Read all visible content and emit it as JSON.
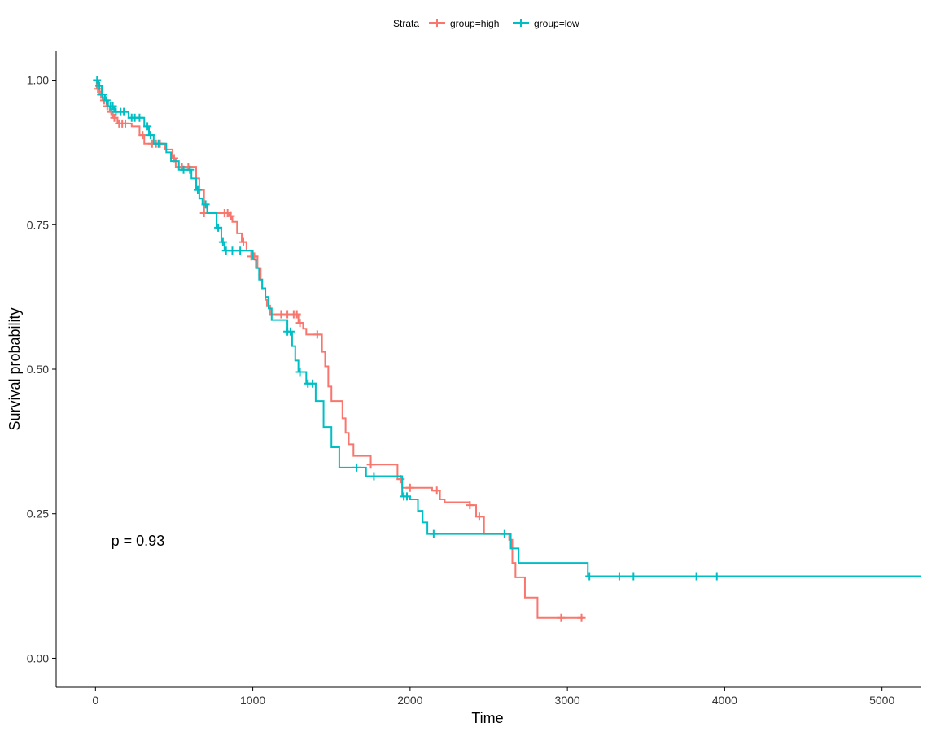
{
  "chart_data": {
    "type": "line",
    "subtype": "kaplan-meier",
    "title": "",
    "xlabel": "Time",
    "ylabel": "Survival probability",
    "xlim": [
      -250,
      5250
    ],
    "ylim": [
      -0.05,
      1.05
    ],
    "x_ticks": [
      0,
      1000,
      2000,
      3000,
      4000,
      5000
    ],
    "y_ticks": [
      0.0,
      0.25,
      0.5,
      0.75,
      1.0
    ],
    "x_tick_labels": [
      "0",
      "1000",
      "2000",
      "3000",
      "4000",
      "5000"
    ],
    "y_tick_labels": [
      "0.00",
      "0.25",
      "0.50",
      "0.75",
      "1.00"
    ],
    "grid": false,
    "legend": {
      "position": "top",
      "title": "Strata",
      "entries": [
        "group=high",
        "group=low"
      ]
    },
    "annotation": {
      "text": "p = 0.93",
      "x": 100,
      "y": 0.195
    },
    "series": [
      {
        "name": "group=high",
        "color": "#F8766D",
        "steps": [
          [
            0,
            1.0
          ],
          [
            8,
            0.985
          ],
          [
            25,
            0.975
          ],
          [
            45,
            0.965
          ],
          [
            70,
            0.955
          ],
          [
            90,
            0.945
          ],
          [
            110,
            0.935
          ],
          [
            140,
            0.925
          ],
          [
            230,
            0.92
          ],
          [
            280,
            0.905
          ],
          [
            310,
            0.89
          ],
          [
            440,
            0.88
          ],
          [
            490,
            0.865
          ],
          [
            510,
            0.85
          ],
          [
            640,
            0.83
          ],
          [
            660,
            0.81
          ],
          [
            690,
            0.77
          ],
          [
            850,
            0.765
          ],
          [
            870,
            0.755
          ],
          [
            900,
            0.735
          ],
          [
            930,
            0.72
          ],
          [
            960,
            0.705
          ],
          [
            990,
            0.695
          ],
          [
            1030,
            0.675
          ],
          [
            1050,
            0.655
          ],
          [
            1060,
            0.64
          ],
          [
            1080,
            0.62
          ],
          [
            1090,
            0.61
          ],
          [
            1110,
            0.595
          ],
          [
            1290,
            0.58
          ],
          [
            1320,
            0.57
          ],
          [
            1340,
            0.56
          ],
          [
            1440,
            0.53
          ],
          [
            1460,
            0.505
          ],
          [
            1480,
            0.47
          ],
          [
            1500,
            0.445
          ],
          [
            1570,
            0.415
          ],
          [
            1590,
            0.39
          ],
          [
            1610,
            0.37
          ],
          [
            1640,
            0.35
          ],
          [
            1750,
            0.335
          ],
          [
            1920,
            0.31
          ],
          [
            1950,
            0.295
          ],
          [
            2140,
            0.29
          ],
          [
            2190,
            0.275
          ],
          [
            2220,
            0.27
          ],
          [
            2380,
            0.265
          ],
          [
            2420,
            0.245
          ],
          [
            2470,
            0.215
          ],
          [
            2630,
            0.205
          ],
          [
            2650,
            0.165
          ],
          [
            2670,
            0.14
          ],
          [
            2730,
            0.105
          ],
          [
            2810,
            0.07
          ],
          [
            3100,
            0.07
          ]
        ],
        "censor_x": [
          15,
          35,
          55,
          75,
          100,
          120,
          150,
          170,
          190,
          300,
          360,
          385,
          410,
          500,
          550,
          590,
          690,
          820,
          840,
          860,
          940,
          990,
          1010,
          1180,
          1220,
          1260,
          1280,
          1300,
          1410,
          1750,
          1940,
          2000,
          2170,
          2380,
          2440,
          2960,
          3090
        ]
      },
      {
        "name": "group=low",
        "color": "#00BFC4",
        "steps": [
          [
            0,
            1.0
          ],
          [
            20,
            0.99
          ],
          [
            40,
            0.975
          ],
          [
            60,
            0.965
          ],
          [
            80,
            0.955
          ],
          [
            120,
            0.945
          ],
          [
            210,
            0.935
          ],
          [
            310,
            0.92
          ],
          [
            340,
            0.905
          ],
          [
            370,
            0.89
          ],
          [
            450,
            0.875
          ],
          [
            480,
            0.86
          ],
          [
            530,
            0.845
          ],
          [
            610,
            0.83
          ],
          [
            640,
            0.81
          ],
          [
            660,
            0.795
          ],
          [
            680,
            0.785
          ],
          [
            710,
            0.77
          ],
          [
            770,
            0.745
          ],
          [
            800,
            0.72
          ],
          [
            820,
            0.705
          ],
          [
            1000,
            0.69
          ],
          [
            1020,
            0.675
          ],
          [
            1040,
            0.655
          ],
          [
            1060,
            0.64
          ],
          [
            1080,
            0.625
          ],
          [
            1100,
            0.605
          ],
          [
            1120,
            0.585
          ],
          [
            1220,
            0.565
          ],
          [
            1250,
            0.54
          ],
          [
            1270,
            0.515
          ],
          [
            1290,
            0.495
          ],
          [
            1340,
            0.475
          ],
          [
            1400,
            0.445
          ],
          [
            1450,
            0.4
          ],
          [
            1500,
            0.365
          ],
          [
            1550,
            0.33
          ],
          [
            1720,
            0.315
          ],
          [
            1950,
            0.28
          ],
          [
            2000,
            0.275
          ],
          [
            2050,
            0.255
          ],
          [
            2080,
            0.235
          ],
          [
            2110,
            0.215
          ],
          [
            2640,
            0.19
          ],
          [
            2690,
            0.165
          ],
          [
            3130,
            0.142
          ],
          [
            5250,
            0.142
          ]
        ],
        "censor_x": [
          10,
          25,
          45,
          70,
          95,
          110,
          130,
          160,
          180,
          230,
          250,
          280,
          330,
          350,
          400,
          560,
          600,
          650,
          700,
          780,
          810,
          830,
          870,
          920,
          1220,
          1240,
          1300,
          1350,
          1380,
          1660,
          1770,
          1960,
          1980,
          2150,
          2600,
          3140,
          3330,
          3420,
          3820,
          3950
        ]
      }
    ]
  }
}
